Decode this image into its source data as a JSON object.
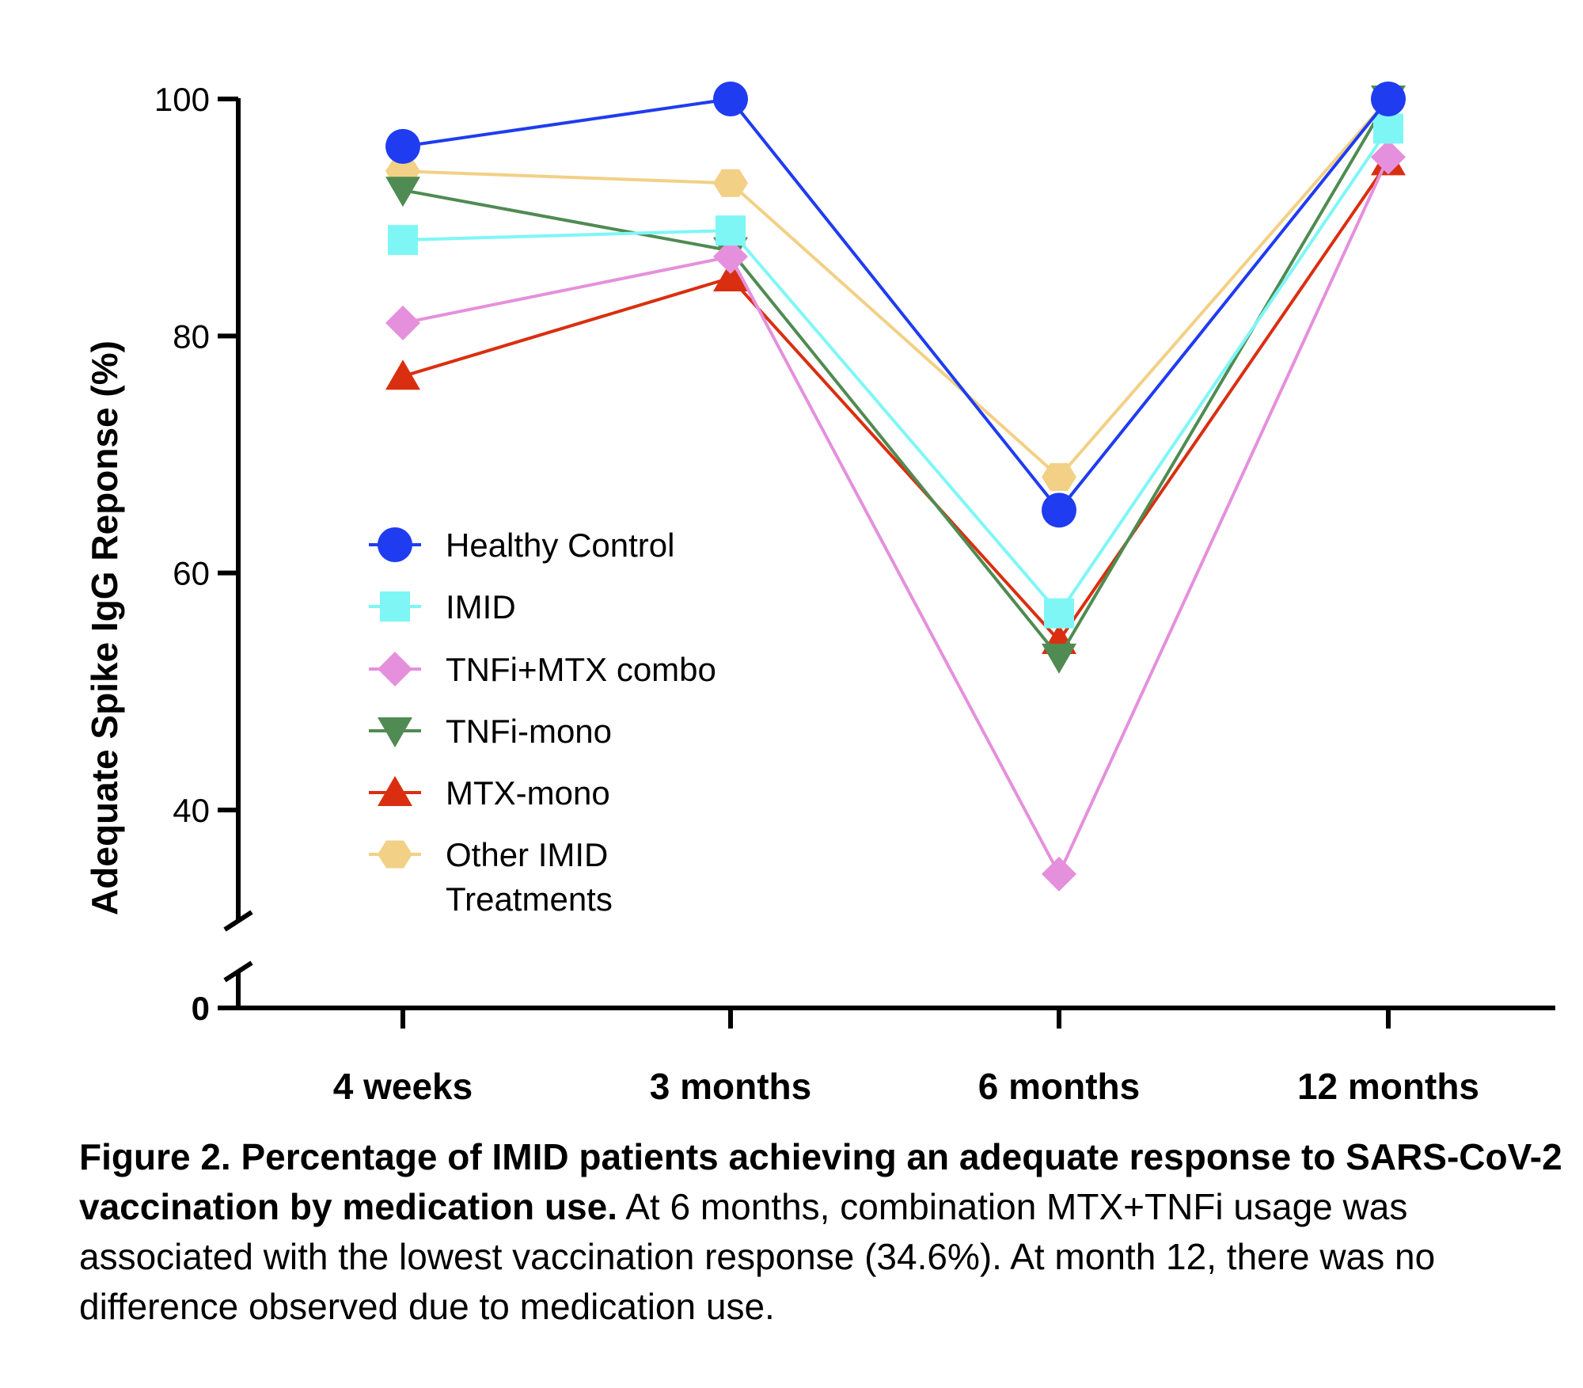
{
  "chart_data": {
    "type": "line",
    "ylabel": "Adequate Spike IgG Reponse (%)",
    "categories": [
      "4 weeks",
      "3 months",
      "6 months",
      "12 months"
    ],
    "y_ticks": [
      100,
      80,
      60,
      40,
      0
    ],
    "ylim": [
      30,
      100
    ],
    "y_axis_break": true,
    "grid": false,
    "legend_position": "center-left",
    "series": [
      {
        "name": "Healthy Control",
        "color": "#1f3cf0",
        "marker": "circle",
        "values": [
          96.0,
          100.0,
          65.3,
          100.0
        ]
      },
      {
        "name": "IMID",
        "color": "#7ff6f6",
        "marker": "square",
        "values": [
          88.1,
          88.9,
          56.6,
          97.5
        ]
      },
      {
        "name": "TNFi+MTX combo",
        "color": "#e590dc",
        "marker": "diamond",
        "values": [
          81.1,
          86.7,
          34.6,
          95.1
        ]
      },
      {
        "name": "TNFi-mono",
        "color": "#4f8b52",
        "marker": "triangle-down",
        "values": [
          92.3,
          87.2,
          52.9,
          100.0
        ]
      },
      {
        "name": "MTX-mono",
        "color": "#d92f10",
        "marker": "triangle-up",
        "values": [
          76.6,
          84.9,
          54.3,
          94.7
        ]
      },
      {
        "name": "Other IMID Treatments",
        "legend_lines": [
          "Other IMID",
          "Treatments"
        ],
        "color": "#f2d085",
        "marker": "hexagon",
        "values": [
          93.9,
          92.9,
          68.1,
          100.0
        ]
      }
    ]
  },
  "caption": {
    "bold": "Figure 2. Percentage of IMID patients achieving an adequate response to SARS-CoV-2 vaccination by medication use.",
    "text": " At 6 months, combination MTX+TNFi usage was associated with the lowest vaccination response (34.6%). At month 12, there was no difference observed due to medication use."
  }
}
